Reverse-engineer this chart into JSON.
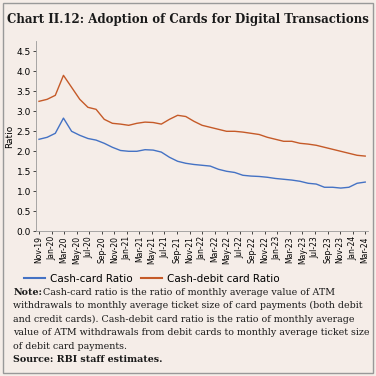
{
  "title": "Chart II.12: Adoption of Cards for Digital Transactions",
  "ylabel": "Ratio",
  "background_color": "#f5ede8",
  "ylim": [
    0.0,
    4.75
  ],
  "yticks": [
    0.0,
    0.5,
    1.0,
    1.5,
    2.0,
    2.5,
    3.0,
    3.5,
    4.0,
    4.5
  ],
  "x_labels": [
    "Nov-19",
    "Jan-20",
    "Mar-20",
    "May-20",
    "Jul-20",
    "Sep-20",
    "Nov-20",
    "Jan-21",
    "Mar-21",
    "May-21",
    "Jul-21",
    "Sep-21",
    "Nov-21",
    "Jan-22",
    "Mar-22",
    "May-22",
    "Jul-22",
    "Sep-22",
    "Nov-22",
    "Jan-23",
    "Mar-23",
    "May-23",
    "Jul-23",
    "Sep-23",
    "Nov-23",
    "Jan-24",
    "Mar-24"
  ],
  "cash_card_ratio": [
    2.3,
    2.35,
    2.45,
    2.83,
    2.5,
    2.4,
    2.32,
    2.28,
    2.2,
    2.1,
    2.02,
    2.0,
    2.0,
    2.04,
    2.03,
    1.98,
    1.85,
    1.75,
    1.7,
    1.67,
    1.65,
    1.63,
    1.55,
    1.5,
    1.47,
    1.4,
    1.38,
    1.37,
    1.35,
    1.32,
    1.3,
    1.28,
    1.25,
    1.2,
    1.18,
    1.1,
    1.1,
    1.08,
    1.1,
    1.2,
    1.23
  ],
  "cash_debit_ratio": [
    3.25,
    3.3,
    3.4,
    3.9,
    3.6,
    3.3,
    3.1,
    3.05,
    2.8,
    2.7,
    2.68,
    2.65,
    2.7,
    2.73,
    2.72,
    2.68,
    2.8,
    2.9,
    2.87,
    2.75,
    2.65,
    2.6,
    2.55,
    2.5,
    2.5,
    2.48,
    2.45,
    2.42,
    2.35,
    2.3,
    2.25,
    2.25,
    2.2,
    2.18,
    2.15,
    2.1,
    2.05,
    2.0,
    1.95,
    1.9,
    1.88
  ],
  "line_color_blue": "#4472c4",
  "line_color_orange": "#c55a28",
  "legend_label_blue": "Cash-card Ratio",
  "legend_label_orange": "Cash-debit card Ratio",
  "note_bold": "Note:",
  "note_rest": " Cash-card ratio is the ratio of monthly average value of ATM withdrawals to monthly average ticket size of card payments (both debit and credit cards). Cash-debit card ratio is the ratio of monthly average value of ATM withdrawals from debit cards to monthly average ticket size of debit card payments.",
  "source_text": "Source: RBI staff estimates.",
  "title_fontsize": 8.5,
  "axis_fontsize": 6.5,
  "legend_fontsize": 7.5,
  "note_fontsize": 6.8,
  "tick_label_fontsize": 5.5
}
